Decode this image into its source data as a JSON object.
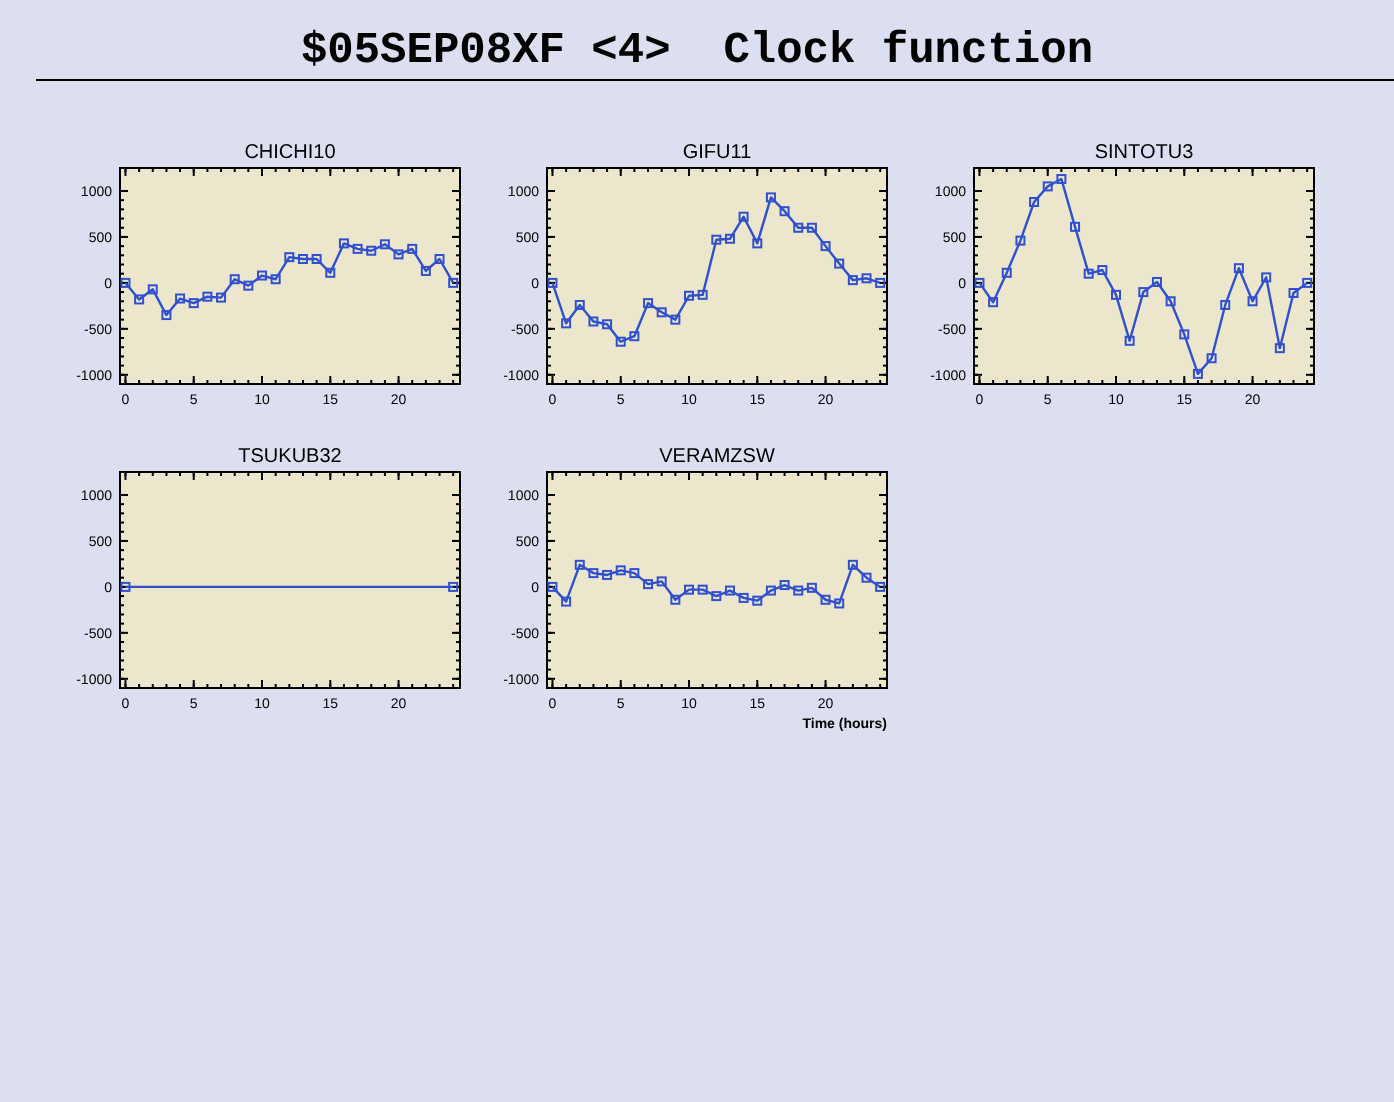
{
  "chart_data": [
    {
      "type": "other",
      "title": "$05SEP08XF <4>  Clock function"
    },
    {
      "type": "line",
      "title": "CHICHI10",
      "x": [
        0,
        1,
        2,
        3,
        4,
        5,
        6,
        7,
        8,
        9,
        10,
        11,
        12,
        13,
        14,
        15,
        16,
        17,
        18,
        19,
        20,
        21,
        22,
        23,
        24
      ],
      "xlim": [
        -0.4,
        24.5
      ],
      "ylim": [
        -1100,
        1250
      ],
      "xticks": [
        0,
        5,
        10,
        15,
        20
      ],
      "yticks": [
        -1000,
        -500,
        0,
        500,
        1000
      ],
      "marker": "square",
      "line_style": "solid",
      "series": [
        {
          "color": "#3050d0",
          "values": [
            0,
            -180,
            -70,
            -350,
            -170,
            -220,
            -150,
            -160,
            40,
            -30,
            80,
            40,
            280,
            260,
            260,
            110,
            430,
            370,
            350,
            420,
            310,
            370,
            130,
            260,
            0
          ]
        }
      ]
    },
    {
      "type": "line",
      "title": "GIFU11",
      "x": [
        0,
        1,
        2,
        3,
        4,
        5,
        6,
        7,
        8,
        9,
        10,
        11,
        12,
        13,
        14,
        15,
        16,
        17,
        18,
        19,
        20,
        21,
        22,
        23,
        24
      ],
      "xlim": [
        -0.4,
        24.5
      ],
      "ylim": [
        -1100,
        1250
      ],
      "xticks": [
        0,
        5,
        10,
        15,
        20
      ],
      "yticks": [
        -1000,
        -500,
        0,
        500,
        1000
      ],
      "marker": "square",
      "line_style": "solid",
      "series": [
        {
          "color": "#3050d0",
          "values": [
            0,
            -440,
            -240,
            -420,
            -450,
            -640,
            -580,
            -220,
            -320,
            -400,
            -140,
            -130,
            470,
            480,
            720,
            430,
            930,
            780,
            600,
            600,
            400,
            210,
            30,
            50,
            0
          ]
        }
      ]
    },
    {
      "type": "line",
      "title": "SINTOTU3",
      "x": [
        0,
        1,
        2,
        3,
        4,
        5,
        6,
        7,
        8,
        9,
        10,
        11,
        12,
        13,
        14,
        15,
        16,
        17,
        18,
        19,
        20,
        21,
        22,
        23,
        24
      ],
      "xlim": [
        -0.4,
        24.5
      ],
      "ylim": [
        -1100,
        1250
      ],
      "xticks": [
        0,
        5,
        10,
        15,
        20
      ],
      "yticks": [
        -1000,
        -500,
        0,
        500,
        1000
      ],
      "marker": "square",
      "line_style": "solid",
      "series": [
        {
          "color": "#3050d0",
          "values": [
            0,
            -210,
            110,
            460,
            880,
            1050,
            1130,
            610,
            100,
            140,
            -130,
            -630,
            -100,
            10,
            -200,
            -560,
            -990,
            -820,
            -240,
            160,
            -200,
            60,
            -710,
            -110,
            0
          ]
        }
      ]
    },
    {
      "type": "line",
      "title": "TSUKUB32",
      "x": [
        0,
        24
      ],
      "xlim": [
        -0.4,
        24.5
      ],
      "ylim": [
        -1100,
        1250
      ],
      "xticks": [
        0,
        5,
        10,
        15,
        20
      ],
      "yticks": [
        -1000,
        -500,
        0,
        500,
        1000
      ],
      "marker": "square",
      "line_style": "solid",
      "series": [
        {
          "color": "#3050d0",
          "values": [
            0,
            0
          ]
        }
      ]
    },
    {
      "type": "line",
      "title": "VERAMZSW",
      "xlabel": "Time (hours)",
      "x": [
        0,
        1,
        2,
        3,
        4,
        5,
        6,
        7,
        8,
        9,
        10,
        11,
        12,
        13,
        14,
        15,
        16,
        17,
        18,
        19,
        20,
        21,
        22,
        23,
        24
      ],
      "xlim": [
        -0.4,
        24.5
      ],
      "ylim": [
        -1100,
        1250
      ],
      "xticks": [
        0,
        5,
        10,
        15,
        20
      ],
      "yticks": [
        -1000,
        -500,
        0,
        500,
        1000
      ],
      "marker": "square",
      "line_style": "solid",
      "series": [
        {
          "color": "#3050d0",
          "values": [
            0,
            -160,
            240,
            150,
            130,
            180,
            150,
            30,
            60,
            -140,
            -30,
            -30,
            -100,
            -40,
            -120,
            -150,
            -40,
            20,
            -40,
            -10,
            -140,
            -180,
            240,
            100,
            0
          ]
        }
      ]
    }
  ]
}
